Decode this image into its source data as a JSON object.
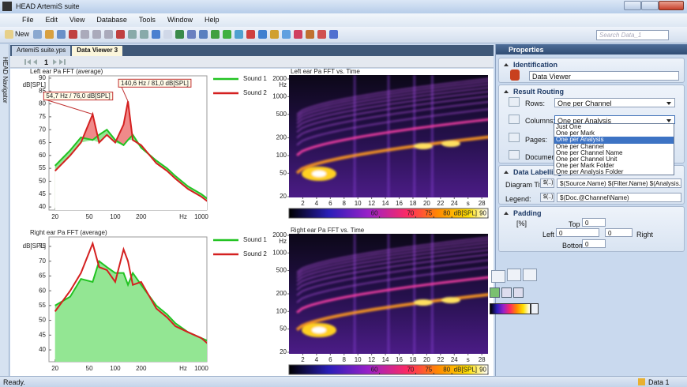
{
  "window_title": "HEAD ArtemiS suite",
  "menu": [
    "File",
    "Edit",
    "View",
    "Database",
    "Tools",
    "Window",
    "Help"
  ],
  "toolbar": {
    "new": "New",
    "search": "Search Data_1"
  },
  "navigator": "HEAD Navigator",
  "tabs": [
    "ArtemiS suite.yps",
    "Data Viewer 3"
  ],
  "page_nav": "1",
  "charts": [
    {
      "type": "line",
      "title": "Left ear Pa FFT (average)",
      "ylabel": "dB[SPL]",
      "xlabel": "Hz",
      "xscale": "log",
      "xlim": [
        17,
        1160
      ],
      "xticks": [
        20,
        50,
        100,
        200,
        1000
      ],
      "ylim": [
        38.8,
        90.9
      ],
      "yticks": [
        40,
        45,
        50,
        55,
        60,
        65,
        70,
        75,
        80,
        85,
        90
      ],
      "x": [
        20,
        30,
        40,
        54.7,
        65,
        80,
        100,
        125,
        140.6,
        160,
        200,
        300,
        400,
        500,
        700,
        1000,
        1200
      ],
      "series": [
        {
          "name": "Sound 1",
          "color": "#22c322",
          "fill": "#93e693",
          "values": [
            56,
            62,
            67,
            66,
            68,
            70,
            66,
            64,
            66,
            68,
            63,
            58,
            55,
            52,
            48,
            45,
            43
          ]
        },
        {
          "name": "Sound 2",
          "color": "#d42020",
          "fill": "#f08a8a",
          "values": [
            54,
            60,
            65,
            76,
            65,
            68,
            65,
            72,
            81,
            66,
            64,
            57,
            54,
            51,
            47,
            44,
            42
          ]
        }
      ],
      "fill_between": true,
      "annotations": [
        {
          "text": "140,6 Hz / 81,0 dB[SPL]",
          "x": 140.6,
          "y": 81.0
        },
        {
          "text": "54,7 Hz / 76,0 dB[SPL]",
          "x": 54.7,
          "y": 76.0
        }
      ]
    },
    {
      "type": "line",
      "title": "Right ear Pa FFT (average)",
      "ylabel": "dB[SPL]",
      "xlabel": "Hz",
      "xscale": "log",
      "xlim": [
        17,
        1160
      ],
      "xticks": [
        20,
        50,
        100,
        200,
        1000
      ],
      "ylim": [
        36,
        78.2
      ],
      "yticks": [
        40,
        45,
        50,
        55,
        60,
        65,
        70,
        75
      ],
      "x": [
        20,
        30,
        40,
        54.7,
        65,
        80,
        100,
        125,
        140.6,
        160,
        200,
        300,
        400,
        500,
        700,
        1000,
        1200
      ],
      "series": [
        {
          "name": "Sound 1",
          "color": "#22c322",
          "fill": "#93e693",
          "values": [
            55,
            58,
            64,
            63,
            70,
            68,
            66,
            66,
            62,
            66,
            62,
            55,
            52,
            49,
            46,
            44,
            43
          ]
        },
        {
          "name": "Sound 2",
          "color": "#d42020",
          "values": [
            53,
            60,
            66,
            76,
            68,
            67,
            63,
            74,
            70,
            62,
            63,
            54,
            51,
            48,
            46,
            44,
            42
          ]
        }
      ]
    },
    {
      "type": "heatmap",
      "title": "Left ear Pa FFT vs. Time",
      "ylabel": "Hz",
      "yscale": "log",
      "ylim": [
        19.4,
        2333
      ],
      "yticks": [
        20,
        50,
        100,
        200,
        500,
        1000,
        2000
      ],
      "xlim": [
        0,
        28.9
      ],
      "xticks": [
        2,
        4,
        6,
        8,
        10,
        12,
        14,
        16,
        18,
        20,
        22,
        24,
        {
          "value": 26,
          "label": "s"
        },
        28
      ],
      "colorbar": {
        "lim": [
          35,
          90
        ],
        "ticks": [
          60,
          70,
          75,
          80,
          90
        ],
        "label": "dB[SPL]"
      }
    },
    {
      "type": "heatmap",
      "title": "Right ear Pa FFT vs. Time",
      "ylabel": "Hz",
      "yscale": "log",
      "ylim": [
        18.8,
        2128
      ],
      "yticks": [
        20,
        50,
        100,
        200,
        500,
        1000,
        2000
      ],
      "xlim": [
        0,
        28.9
      ],
      "xticks": [
        2,
        4,
        6,
        8,
        10,
        12,
        14,
        16,
        18,
        20,
        22,
        24,
        {
          "value": 26,
          "label": "s"
        },
        28
      ],
      "colorbar": {
        "lim": [
          35,
          90
        ],
        "ticks": [
          60,
          70,
          75,
          80,
          90
        ],
        "label": "dB[SPL]"
      }
    }
  ],
  "properties": {
    "title": "Properties",
    "identification": {
      "heading": "Identification",
      "name": "Data Viewer"
    },
    "result_routing": {
      "heading": "Result Routing",
      "rows_label": "Rows:",
      "rows": "One per Channel",
      "columns_label": "Columns:",
      "columns": "One per Analysis",
      "pages_label": "Pages:",
      "documents_label": "Documents:",
      "options": [
        "Just One",
        "One per Mark",
        "One per Analysis",
        "One per Channel",
        "One per Channel Name",
        "One per Channel Unit",
        "One per Mark Folder",
        "One per Analysis Folder"
      ]
    },
    "data_labelling": {
      "heading": "Data Labelling",
      "title_label": "Diagram Title",
      "title_button": "$(..)",
      "title_value": "$(Source.Name) $(Filter.Name) $(Analysis.Name)",
      "legend_label": "Legend:",
      "legend_button": "$(..)",
      "legend_value": "$(Doc.@Channel\\Name)"
    },
    "padding": {
      "heading": "Padding",
      "unit": "[%]",
      "top_label": "Top",
      "top": 0,
      "left_label": "Left",
      "left": 0,
      "right": 0,
      "right_label": "Right",
      "bottom_label": "Bottom",
      "bottom": 0
    }
  },
  "status": {
    "left": "Ready.",
    "right": "Data 1"
  }
}
